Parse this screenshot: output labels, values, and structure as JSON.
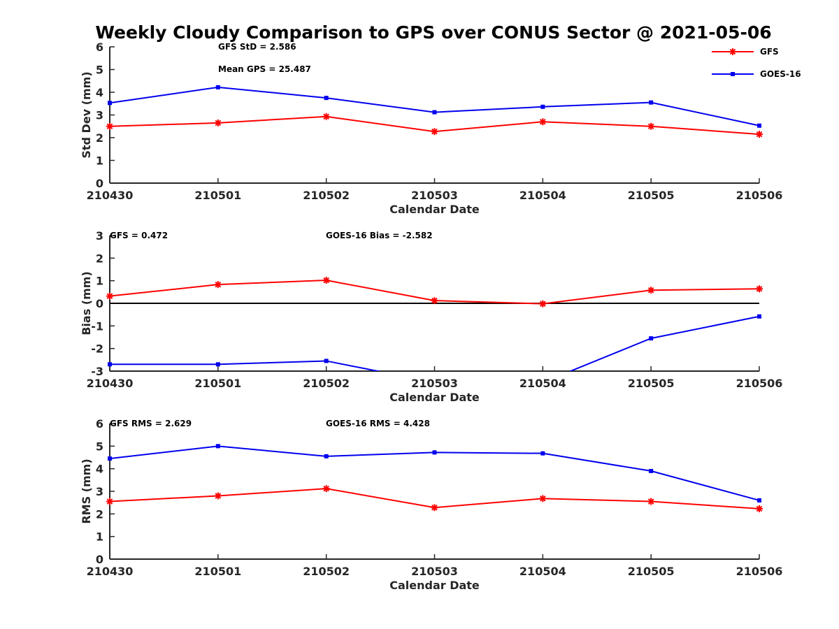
{
  "title": "Weekly Cloudy Comparison to GPS over CONUS Sector @ 2021-05-06",
  "colors": {
    "gfs": "#ff0000",
    "goes": "#0000ee",
    "axis": "#262626",
    "zero": "#000000"
  },
  "legend": {
    "placement": "top-right",
    "entries": [
      "GFS",
      "GOES-16"
    ]
  },
  "chart_data": [
    {
      "type": "line",
      "xlabel": "Calendar Date",
      "ylabel": "Std Dev (mm)",
      "ylim": [
        0,
        6
      ],
      "yticks": [
        0,
        1,
        2,
        3,
        4,
        5,
        6
      ],
      "categories": [
        "210430",
        "210501",
        "210502",
        "210503",
        "210504",
        "210505",
        "210506"
      ],
      "series": [
        {
          "name": "GFS",
          "values": [
            2.5,
            2.65,
            2.93,
            2.27,
            2.7,
            2.5,
            2.15
          ]
        },
        {
          "name": "GOES-16",
          "values": [
            3.53,
            4.22,
            3.75,
            3.12,
            3.36,
            3.55,
            2.53
          ]
        }
      ],
      "annotations": [
        "GFS StD = 2.586",
        "Mean GPS = 25.487"
      ]
    },
    {
      "type": "line",
      "xlabel": "Calendar Date",
      "ylabel": "Bias (mm)",
      "ylim": [
        -3,
        3
      ],
      "yticks": [
        -3,
        -2,
        -1,
        0,
        1,
        2,
        3
      ],
      "zero_line": true,
      "categories": [
        "210430",
        "210501",
        "210502",
        "210503",
        "210504",
        "210505",
        "210506"
      ],
      "series": [
        {
          "name": "GFS",
          "values": [
            0.32,
            0.83,
            1.02,
            0.12,
            -0.02,
            0.58,
            0.64
          ]
        },
        {
          "name": "GOES-16",
          "values": [
            -2.7,
            -2.7,
            -2.55,
            -3.5,
            -3.5,
            -1.55,
            -0.58
          ]
        }
      ],
      "annotations": [
        "GFS = 0.472",
        "GOES-16 Bias  = -2.582"
      ]
    },
    {
      "type": "line",
      "xlabel": "Calendar Date",
      "ylabel": "RMS (mm)",
      "ylim": [
        0,
        6
      ],
      "yticks": [
        0,
        1,
        2,
        3,
        4,
        5,
        6
      ],
      "categories": [
        "210430",
        "210501",
        "210502",
        "210503",
        "210504",
        "210505",
        "210506"
      ],
      "series": [
        {
          "name": "GFS",
          "values": [
            2.55,
            2.8,
            3.12,
            2.28,
            2.68,
            2.55,
            2.23
          ]
        },
        {
          "name": "GOES-16",
          "values": [
            4.45,
            5.0,
            4.55,
            4.72,
            4.68,
            3.9,
            2.6
          ]
        }
      ],
      "annotations": [
        "GFS RMS = 2.629",
        "GOES-16 RMS = 4.428"
      ]
    }
  ]
}
